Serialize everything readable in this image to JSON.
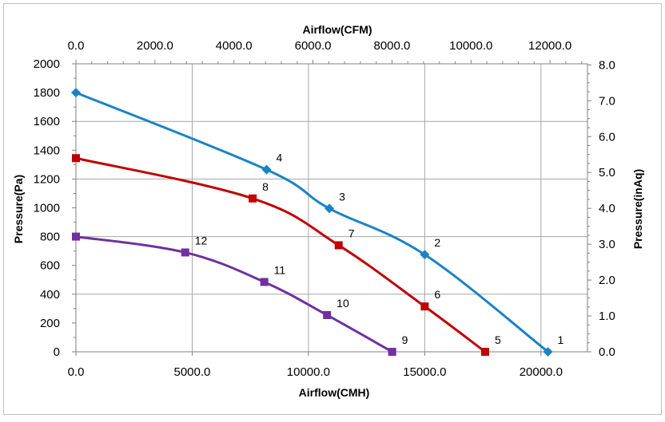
{
  "chart_data": {
    "type": "line",
    "title": "",
    "axes": {
      "x_bottom": {
        "label": "Airflow(CMH)",
        "range": [
          0,
          22000
        ],
        "ticks": [
          0,
          5000,
          10000,
          15000,
          20000
        ],
        "tick_labels": [
          "0.0",
          "5000.0",
          "10000.0",
          "15000.0",
          "20000.0"
        ]
      },
      "x_top": {
        "label": "Airflow(CFM)",
        "range": [
          0,
          12947.9
        ],
        "ticks": [
          0,
          2000,
          4000,
          6000,
          8000,
          10000,
          12000
        ],
        "tick_labels": [
          "0.0",
          "2000.0",
          "4000.0",
          "6000.0",
          "8000.0",
          "10000.0",
          "12000.0"
        ]
      },
      "y_left": {
        "label": "Pressure(Pa)",
        "range": [
          0,
          2000
        ],
        "ticks": [
          0,
          200,
          400,
          600,
          800,
          1000,
          1200,
          1400,
          1600,
          1800,
          2000
        ],
        "tick_labels": [
          "0",
          "200",
          "400",
          "600",
          "800",
          "1000",
          "1200",
          "1400",
          "1600",
          "1800",
          "2000"
        ]
      },
      "y_right": {
        "label": "Pressure(inAq)",
        "range": [
          0,
          8.03
        ],
        "ticks": [
          0,
          1,
          2,
          3,
          4,
          5,
          6,
          7,
          8
        ],
        "tick_labels": [
          "0.0",
          "1.0",
          "2.0",
          "3.0",
          "4.0",
          "5.0",
          "6.0",
          "7.0",
          "8.0"
        ]
      }
    },
    "grid": true,
    "legend": "none",
    "series": [
      {
        "color": "#1b83c5",
        "marker": "diamond",
        "points": [
          {
            "x": 0,
            "y": 1800,
            "label": ""
          },
          {
            "x": 8200,
            "y": 1265,
            "label": "4"
          },
          {
            "x": 10900,
            "y": 995,
            "label": "3"
          },
          {
            "x": 15000,
            "y": 675,
            "label": "2"
          },
          {
            "x": 20300,
            "y": 0,
            "label": "1"
          }
        ]
      },
      {
        "color": "#c00000",
        "marker": "square",
        "points": [
          {
            "x": 0,
            "y": 1345,
            "label": ""
          },
          {
            "x": 7600,
            "y": 1065,
            "label": "8"
          },
          {
            "x": 11300,
            "y": 740,
            "label": "7"
          },
          {
            "x": 15000,
            "y": 315,
            "label": "6"
          },
          {
            "x": 17600,
            "y": 0,
            "label": "5"
          }
        ]
      },
      {
        "color": "#7030a0",
        "marker": "square",
        "points": [
          {
            "x": 0,
            "y": 800,
            "label": ""
          },
          {
            "x": 4700,
            "y": 690,
            "label": "12"
          },
          {
            "x": 8100,
            "y": 485,
            "label": "11"
          },
          {
            "x": 10800,
            "y": 255,
            "label": "10"
          },
          {
            "x": 13600,
            "y": 0,
            "label": "9"
          }
        ]
      }
    ]
  }
}
